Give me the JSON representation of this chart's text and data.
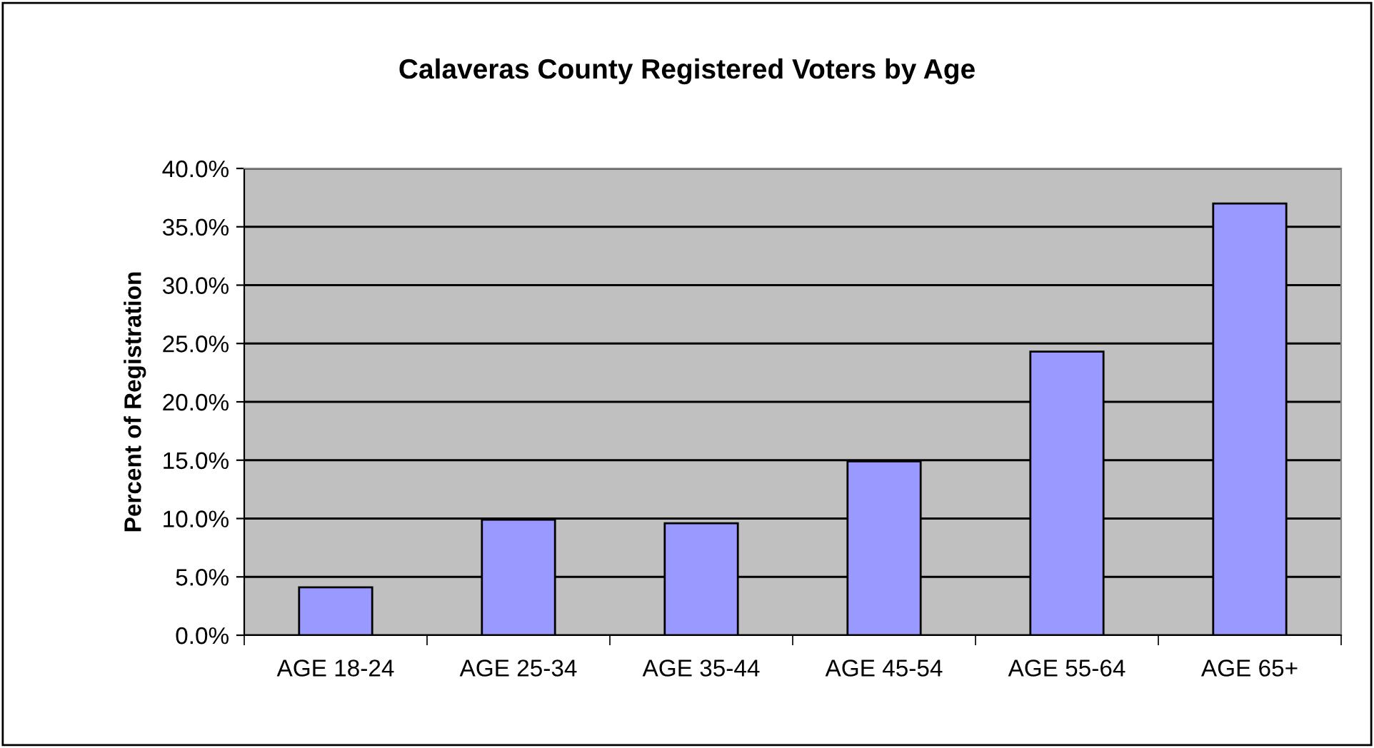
{
  "chart_data": {
    "type": "bar",
    "title": "Calaveras County Registered Voters by Age",
    "ylabel": "Percent of Registration",
    "categories": [
      "AGE 18-24",
      "AGE 25-34",
      "AGE 35-44",
      "AGE 45-54",
      "AGE 55-64",
      "AGE 65+"
    ],
    "values": [
      4.1,
      9.9,
      9.6,
      14.9,
      24.3,
      37.0
    ],
    "color": "#9999ff",
    "ylim": [
      0,
      40
    ],
    "yticks": [
      {
        "value": 0,
        "label": "0.0%"
      },
      {
        "value": 5,
        "label": "5.0%"
      },
      {
        "value": 10,
        "label": "10.0%"
      },
      {
        "value": 15,
        "label": "15.0%"
      },
      {
        "value": 20,
        "label": "20.0%"
      },
      {
        "value": 25,
        "label": "25.0%"
      },
      {
        "value": 30,
        "label": "30.0%"
      },
      {
        "value": 35,
        "label": "35.0%"
      },
      {
        "value": 40,
        "label": "40.0%"
      }
    ],
    "grid": "y",
    "legend": false
  }
}
